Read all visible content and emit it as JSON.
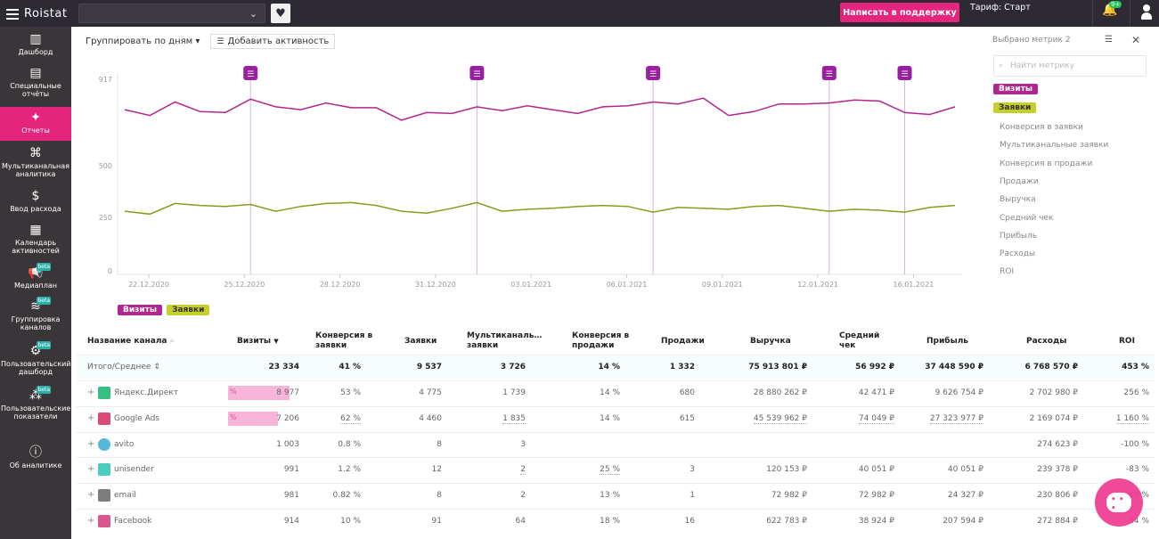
{
  "app": {
    "logo": "Roistat",
    "support_label": "Написать в поддержку",
    "tariff": "Тариф: Старт",
    "notif_badge": "9+"
  },
  "sidebar": {
    "items": [
      {
        "label": "Дашборд",
        "icon": "dashboard-icon"
      },
      {
        "label": "Специальные отчёты",
        "icon": "special-reports-icon"
      },
      {
        "label": "Отчеты",
        "icon": "reports-icon",
        "active": true
      },
      {
        "label": "Мультиканальная аналитика",
        "icon": "multichannel-icon"
      },
      {
        "label": "Ввод расхода",
        "icon": "expense-icon"
      },
      {
        "label": "Календарь активностей",
        "icon": "calendar-icon"
      },
      {
        "label": "Медиаплан",
        "icon": "megaphone-icon",
        "beta": "beta"
      },
      {
        "label": "Группировка каналов",
        "icon": "layers-icon",
        "beta": "beta"
      },
      {
        "label": "Пользовательский дашборд",
        "icon": "custom-dashboard-icon",
        "beta": "beta"
      },
      {
        "label": "Пользовательские показатели",
        "icon": "custom-metrics-icon",
        "beta": "beta"
      },
      {
        "label": "Об аналитике",
        "icon": "info-icon"
      }
    ]
  },
  "toolbar": {
    "group_by": "Группировать по дням",
    "add_activity": "Добавить активность"
  },
  "metrics_panel": {
    "title": "Выбрано метрик",
    "count": "2",
    "search_placeholder": "Найти метрику",
    "selected": [
      "Визиты",
      "Заявки"
    ],
    "others": [
      "Конверсия в заявки",
      "Мультиканальные заявки",
      "Конверсия в продажи",
      "Продажи",
      "Выручка",
      "Средний чек",
      "Прибыль",
      "Расходы",
      "ROI"
    ]
  },
  "chart_data": {
    "type": "line",
    "x_ticks": [
      "22.12.2020",
      "25.12.2020",
      "28.12.2020",
      "31.12.2020",
      "03.01.2021",
      "06.01.2021",
      "09.01.2021",
      "12.01.2021",
      "16.01.2021"
    ],
    "y_ticks": [
      "917",
      "500",
      "250",
      "0"
    ],
    "ylim": [
      0,
      1000
    ],
    "series": [
      {
        "name": "Визиты",
        "color": "#b2268f",
        "values": [
          860,
          830,
          900,
          850,
          845,
          915,
          875,
          860,
          895,
          870,
          870,
          805,
          845,
          840,
          875,
          855,
          880,
          860,
          840,
          875,
          880,
          900,
          890,
          920,
          830,
          850,
          890,
          890,
          895,
          910,
          905,
          845,
          835,
          875
        ]
      },
      {
        "name": "Заявки",
        "color": "#8a9a1a",
        "values": [
          330,
          315,
          370,
          360,
          355,
          365,
          330,
          355,
          370,
          375,
          360,
          330,
          320,
          345,
          375,
          330,
          340,
          345,
          355,
          360,
          355,
          325,
          350,
          345,
          340,
          355,
          360,
          345,
          330,
          340,
          335,
          325,
          350,
          360
        ]
      },
      {
        "name": "",
        "color": "",
        "values": []
      }
    ],
    "activity_markers": [
      5,
      14,
      21,
      28,
      31
    ]
  },
  "legend": [
    "Визиты",
    "Заявки"
  ],
  "table": {
    "headers": [
      "Название канала",
      "Визиты",
      "Конверсия в заявки",
      "Заявки",
      "Мультиканаль… заявки",
      "Конверсия в продажи",
      "Продажи",
      "Выручка",
      "Средний чек",
      "Прибыль",
      "Расходы",
      "ROI"
    ],
    "total": {
      "name": "Итого/Среднее",
      "visits": "23 334",
      "conv_leads": "41 %",
      "leads": "9 537",
      "multi": "3 726",
      "conv_sales": "14 %",
      "sales": "1 332",
      "revenue": "75 913 801 ₽",
      "avg": "56 992 ₽",
      "profit": "37 448 590 ₽",
      "expense": "6 768 570 ₽",
      "roi": "453 %"
    },
    "rows": [
      {
        "name": "Яндекс.Директ",
        "icon": "yandex-direct-icon",
        "visits": "8 977",
        "bar": 0.385,
        "conv_leads": "53 %",
        "leads": "4 775",
        "multi": "1 739",
        "conv_sales": "14 %",
        "sales": "680",
        "revenue": "28 880 262 ₽",
        "avg": "42 471 ₽",
        "profit": "9 626 754 ₽",
        "expense": "2 702 980 ₽",
        "roi": "256 %"
      },
      {
        "name": "Google Ads",
        "icon": "google-ads-icon",
        "visits": "7 206",
        "bar": 0.31,
        "conv_leads": "62 %",
        "leads": "4 460",
        "multi": "1 835",
        "conv_sales": "14 %",
        "sales": "615",
        "revenue": "45 539 962 ₽",
        "avg": "74 049 ₽",
        "profit": "27 323 977 ₽",
        "expense": "2 169 074 ₽",
        "roi": "1 160 %"
      },
      {
        "name": "avito",
        "icon": "avito-icon",
        "visits": "1 003",
        "bar": 0,
        "conv_leads": "0.8 %",
        "leads": "8",
        "multi": "3",
        "conv_sales": "",
        "sales": "",
        "revenue": "",
        "avg": "",
        "profit": "",
        "expense": "274 623 ₽",
        "roi": "-100 %"
      },
      {
        "name": "unisender",
        "icon": "unisender-icon",
        "visits": "991",
        "bar": 0,
        "conv_leads": "1.2 %",
        "leads": "12",
        "multi": "2",
        "conv_sales": "25 %",
        "sales": "3",
        "revenue": "120 153 ₽",
        "avg": "40 051 ₽",
        "profit": "40 051 ₽",
        "expense": "239 378 ₽",
        "roi": "-83 %"
      },
      {
        "name": "email",
        "icon": "email-icon",
        "visits": "981",
        "bar": 0,
        "conv_leads": "0.82 %",
        "leads": "8",
        "multi": "2",
        "conv_sales": "13 %",
        "sales": "1",
        "revenue": "72 982 ₽",
        "avg": "72 982 ₽",
        "profit": "24 327 ₽",
        "expense": "230 806 ₽",
        "roi": "-68 %"
      },
      {
        "name": "Facebook",
        "icon": "facebook-icon",
        "visits": "914",
        "bar": 0,
        "conv_leads": "10 %",
        "leads": "91",
        "multi": "64",
        "conv_sales": "18 %",
        "sales": "16",
        "revenue": "622 783 ₽",
        "avg": "38 924 ₽",
        "profit": "207 594 ₽",
        "expense": "272 884 ₽",
        "roi": "-24 %"
      }
    ]
  }
}
